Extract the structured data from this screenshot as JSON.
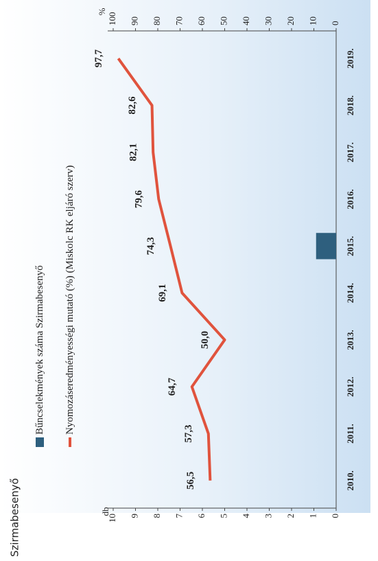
{
  "chart_data": {
    "type": "bar-line",
    "title": "Szirmabesenyő",
    "y_label": "db",
    "y2_label": "%",
    "categories": [
      "2010.",
      "2011.",
      "2012.",
      "2013.",
      "2014.",
      "2015.",
      "2016.",
      "2017.",
      "2018.",
      "2019."
    ],
    "series": [
      {
        "name": "Bűncselekmények száma Szirmabesenyő",
        "type": "bar",
        "color": "#2e5f7e",
        "values": [
          null,
          null,
          null,
          null,
          null,
          0.9,
          null,
          null,
          null,
          null
        ]
      },
      {
        "name": "Nyomozáseredményességi mutató (%) (Miskolc RK eljáró szerv)",
        "type": "line",
        "axis": "y2",
        "color": "#e0533d",
        "values": [
          56.5,
          57.3,
          64.7,
          50.0,
          69.1,
          74.3,
          79.6,
          82.1,
          82.6,
          97.7
        ],
        "value_labels": [
          "56,5",
          "57,3",
          "64,7",
          "50,0",
          "69,1",
          "74,3",
          "79,6",
          "82,1",
          "82,6",
          "97,7"
        ]
      }
    ],
    "ylim": [
      0,
      10
    ],
    "yticks": [
      0,
      1,
      2,
      3,
      4,
      5,
      6,
      7,
      8,
      9,
      10
    ],
    "y2lim": [
      0,
      100
    ],
    "y2ticks": [
      0,
      10,
      20,
      30,
      40,
      50,
      60,
      70,
      80,
      90,
      100
    ]
  }
}
